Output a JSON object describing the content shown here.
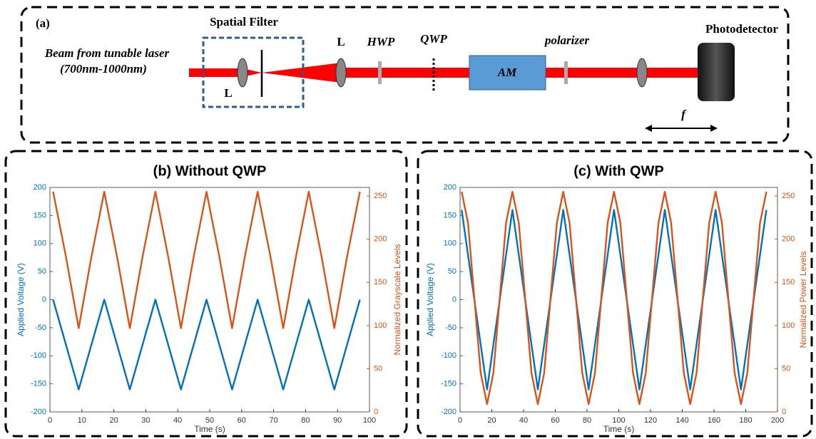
{
  "diagram": {
    "panel_label": "(a)",
    "spatial_filter": "Spatial Filter",
    "source_line1": "Beam from tunable laser",
    "source_line2": "(700nm-1000nm)",
    "lens1": "L",
    "lens2": "L",
    "hwp": "HWP",
    "qwp": "QWP",
    "am": "AM",
    "polarizer": "polarizer",
    "detector": "Photodetector",
    "focal": "f"
  },
  "chart_data": [
    {
      "type": "line",
      "title": "(b) Without QWP",
      "xlabel": "Time (s)",
      "ylabel": "Applied Voltage (V)",
      "y2label": "Normalized Grayscale Levels",
      "x": [
        1,
        5,
        9,
        13,
        17,
        21,
        25,
        29,
        33,
        37,
        41,
        45,
        49,
        53,
        57,
        61,
        65,
        69,
        73,
        77,
        81,
        85,
        89,
        93,
        97
      ],
      "series": [
        {
          "color": "#0072bd",
          "values": [
            0,
            -80,
            -160,
            -80,
            0,
            -80,
            -160,
            -80,
            0,
            -80,
            -160,
            -80,
            0,
            -80,
            -160,
            -80,
            0,
            -80,
            -160,
            -80,
            0,
            -80,
            -160,
            -80,
            0
          ]
        },
        {
          "color": "#d95319",
          "axis": "y2",
          "values": [
            255,
            180,
            97,
            180,
            255,
            180,
            97,
            180,
            255,
            180,
            97,
            180,
            255,
            180,
            97,
            180,
            255,
            180,
            97,
            180,
            255,
            180,
            97,
            180,
            255
          ]
        }
      ],
      "xlim": [
        0,
        100
      ],
      "xticks": [
        0,
        10,
        20,
        30,
        40,
        50,
        60,
        70,
        80,
        90,
        100
      ],
      "ylim": [
        -200,
        200
      ],
      "yticks": [
        -200,
        -150,
        -100,
        -50,
        0,
        50,
        100,
        150,
        200
      ],
      "y2lim": [
        0,
        260
      ],
      "y2ticks": [
        0,
        50,
        100,
        150,
        200,
        250
      ]
    },
    {
      "type": "line",
      "title": "(c) With QWP",
      "xlabel": "Time (s)",
      "ylabel": "Applied Voltage (V)",
      "y2label": "Normalized Power Levels",
      "x": [
        1,
        5,
        9,
        13,
        17,
        21,
        25,
        29,
        33,
        37,
        41,
        45,
        49,
        53,
        57,
        61,
        65,
        69,
        73,
        77,
        81,
        85,
        89,
        93,
        97,
        101,
        105,
        109,
        113,
        117,
        121,
        125,
        129,
        133,
        137,
        141,
        145,
        149,
        153,
        157,
        161,
        165,
        169,
        173,
        177,
        181,
        185,
        189,
        193
      ],
      "series": [
        {
          "color": "#0072bd",
          "values": [
            160,
            80,
            0,
            -80,
            -160,
            -80,
            0,
            80,
            160,
            80,
            0,
            -80,
            -160,
            -80,
            0,
            80,
            160,
            80,
            0,
            -80,
            -160,
            -80,
            0,
            80,
            160,
            80,
            0,
            -80,
            -160,
            -80,
            0,
            80,
            160,
            80,
            0,
            -80,
            -160,
            -80,
            0,
            80,
            160,
            80,
            0,
            -80,
            -160,
            -80,
            0,
            80,
            160
          ]
        },
        {
          "color": "#d95319",
          "axis": "y2",
          "values": [
            255,
            219,
            132,
            45,
            9,
            45,
            132,
            219,
            255,
            219,
            132,
            45,
            9,
            45,
            132,
            219,
            255,
            219,
            132,
            45,
            9,
            45,
            132,
            219,
            255,
            219,
            132,
            45,
            9,
            45,
            132,
            219,
            255,
            219,
            132,
            45,
            9,
            45,
            132,
            219,
            255,
            219,
            132,
            45,
            9,
            45,
            132,
            219,
            255
          ]
        }
      ],
      "xlim": [
        0,
        200
      ],
      "xticks": [
        0,
        20,
        40,
        60,
        80,
        100,
        120,
        140,
        160,
        180,
        200
      ],
      "ylim": [
        -200,
        200
      ],
      "yticks": [
        -200,
        -150,
        -100,
        -50,
        0,
        50,
        100,
        150,
        200
      ],
      "y2lim": [
        0,
        260
      ],
      "y2ticks": [
        0,
        50,
        100,
        150,
        200,
        250
      ]
    }
  ]
}
